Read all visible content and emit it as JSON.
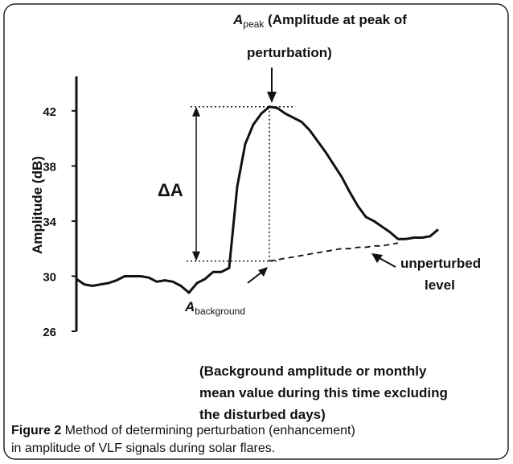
{
  "chart_data": {
    "type": "line",
    "y_label": "Amplitude (dB)",
    "ylim": [
      26,
      44.5
    ],
    "yticks": [
      26,
      30,
      34,
      38,
      42
    ],
    "series": [
      {
        "color": "#111111",
        "style": "solid",
        "values": [
          29.8,
          29.4,
          29.3,
          29.4,
          29.5,
          29.7,
          30.0,
          30.0,
          30.0,
          29.9,
          29.6,
          29.7,
          29.6,
          29.3,
          28.8,
          29.5,
          29.8,
          30.3,
          30.3,
          30.6,
          36.5,
          39.6,
          41.0,
          41.8,
          42.3,
          42.2,
          41.8,
          41.5,
          41.2,
          40.6,
          39.8,
          39.0,
          38.1,
          37.2,
          36.1,
          35.1,
          34.3,
          34.0,
          33.6,
          33.2,
          32.7,
          32.7,
          32.8,
          32.8,
          32.9,
          33.4
        ]
      },
      {
        "color": "#111111",
        "style": "dashed",
        "values": [
          null,
          null,
          null,
          null,
          null,
          null,
          null,
          null,
          null,
          null,
          null,
          null,
          null,
          null,
          null,
          null,
          null,
          null,
          null,
          null,
          null,
          null,
          null,
          null,
          31.1,
          31.2,
          31.3,
          31.4,
          31.5,
          31.6,
          31.7,
          31.8,
          31.9,
          32.0,
          32.0,
          32.1,
          32.1,
          32.2,
          32.2,
          32.3,
          32.4,
          null,
          null,
          null,
          null,
          null
        ]
      }
    ],
    "peak_index": 24,
    "annotations": {
      "peak_symbol": "A",
      "peak_sub": "peak",
      "peak_text_1": " (Amplitude at peak of",
      "peak_text_2": "perturbation)",
      "delta": "ΔA",
      "bg_symbol": "A",
      "bg_sub": "background",
      "unperturbed_1": "unperturbed",
      "unperturbed_2": "level",
      "note": [
        "(Background amplitude or monthly",
        "mean value during this time excluding",
        "the disturbed days)"
      ]
    }
  },
  "caption": {
    "label": "Figure 2",
    "text_1": " Method of determining perturbation (enhancement)",
    "text_2": "in amplitude of VLF signals during solar flares."
  }
}
